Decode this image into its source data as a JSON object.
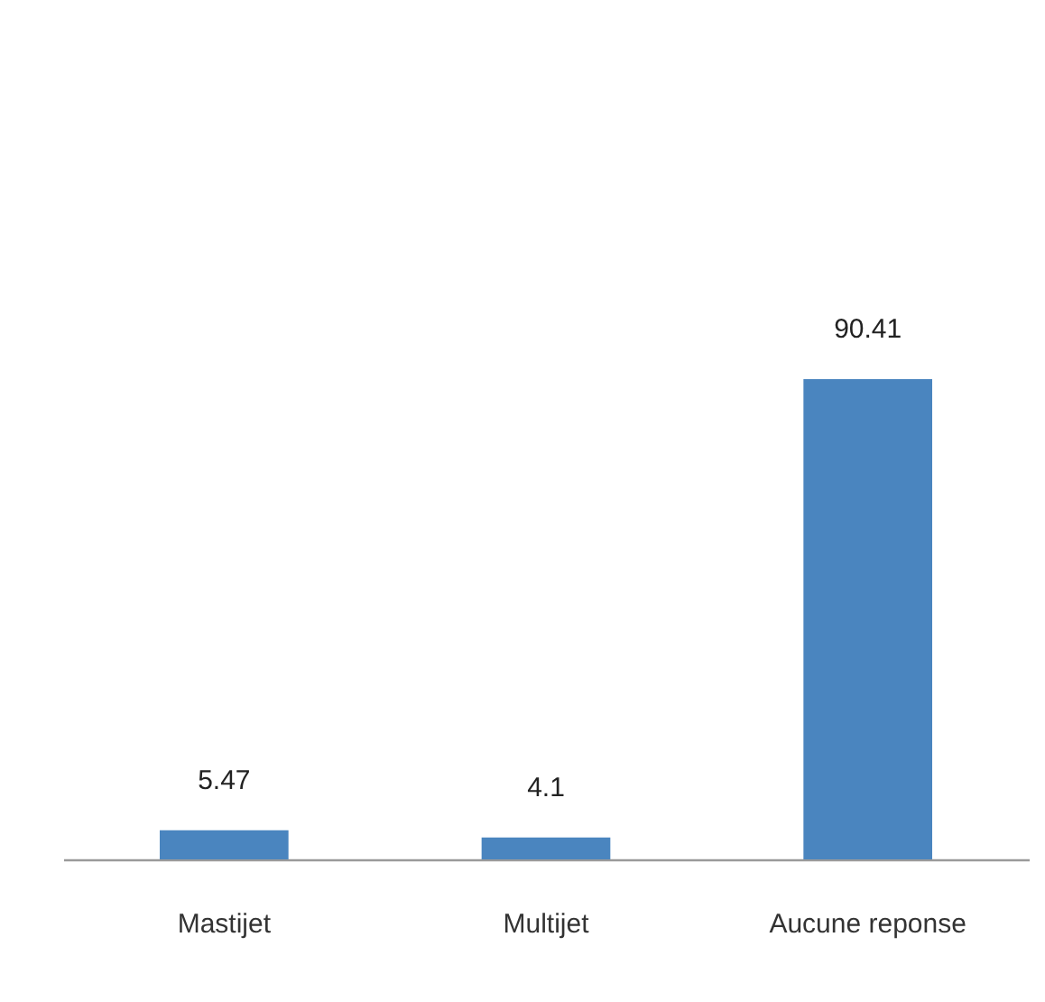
{
  "chart_data": {
    "type": "bar",
    "categories": [
      "Mastijet",
      "Multijet",
      "Aucune reponse"
    ],
    "values": [
      5.47,
      4.1,
      90.41
    ],
    "color": "#4a85bf",
    "data_labels": true
  }
}
